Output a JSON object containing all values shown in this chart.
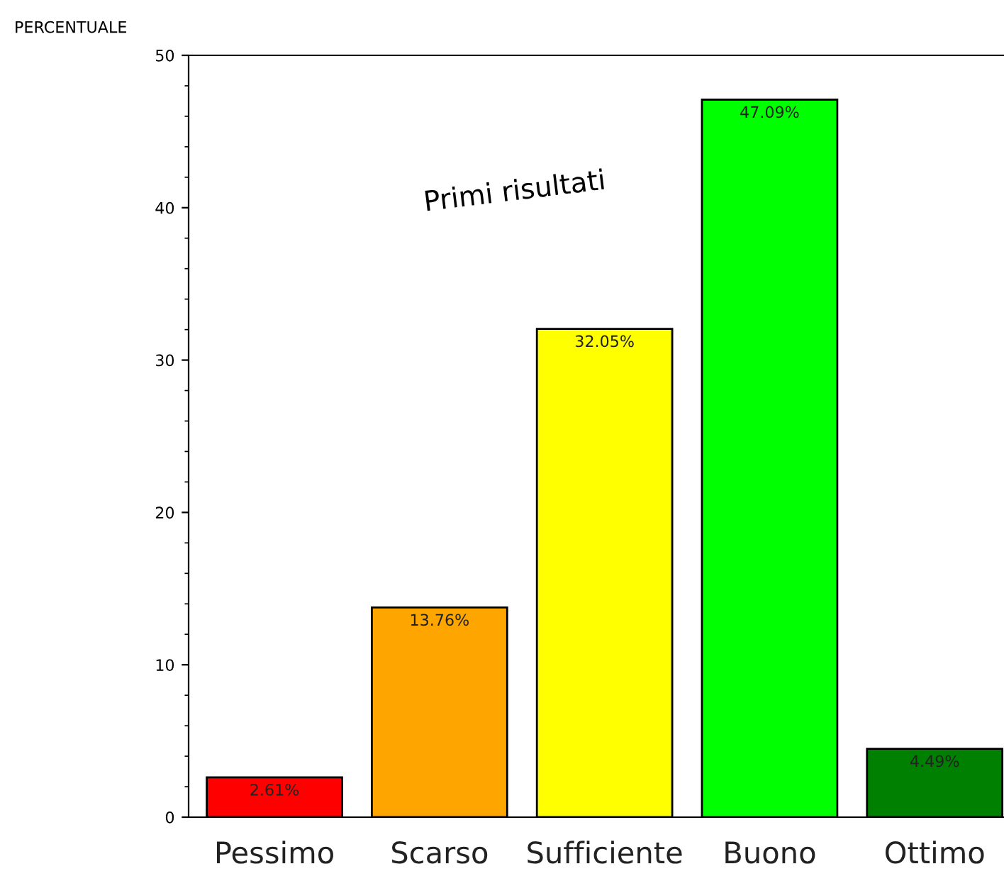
{
  "chart_data": {
    "type": "bar",
    "ylabel": "PERCENTUALE",
    "categories": [
      "Pessimo",
      "Scarso",
      "Sufficiente",
      "Buono",
      "Ottimo"
    ],
    "values": [
      2.61,
      13.76,
      32.05,
      47.09,
      4.49
    ],
    "colors": [
      "#ff0000",
      "#ffa500",
      "#ffff00",
      "#00ff00",
      "#008000"
    ],
    "value_labels": [
      "2.61%",
      "13.76%",
      "32.05%",
      "47.09%",
      "4.49%"
    ],
    "ylim": [
      0,
      50
    ],
    "yticks": [
      0,
      10,
      20,
      30,
      40,
      50
    ],
    "grid": false,
    "legend": false,
    "annotations": [
      "Primi risultati"
    ]
  }
}
